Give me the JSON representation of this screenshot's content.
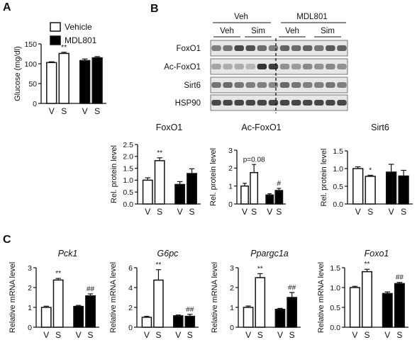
{
  "colors": {
    "vehicle": "#ffffff",
    "mdl801": "#000000",
    "axis": "#111111",
    "blot_bg": "#e6e6e6",
    "band": "#2a2a2a"
  },
  "panels": {
    "A": "A",
    "B": "B",
    "C": "C"
  },
  "legend": {
    "vehicle": "Vehicle",
    "mdl801": "MDL801"
  },
  "blot": {
    "group_labels": [
      "Veh",
      "MDL801"
    ],
    "sub_labels": [
      "Veh",
      "Sim",
      "Veh",
      "Sim"
    ],
    "rows": [
      {
        "label": "FoxO1",
        "intensities": [
          0.55,
          0.6,
          0.85,
          0.8,
          0.65,
          0.55,
          0.7,
          0.65,
          0.7,
          0.6,
          0.75,
          0.7
        ]
      },
      {
        "label": "Ac-FoxO1",
        "intensities": [
          0.35,
          0.3,
          0.3,
          0.25,
          0.95,
          0.9,
          0.45,
          0.4,
          0.5,
          0.45,
          0.5,
          0.45
        ]
      },
      {
        "label": "Sirt6",
        "intensities": [
          0.6,
          0.65,
          0.6,
          0.55,
          0.55,
          0.5,
          0.65,
          0.6,
          0.55,
          0.55,
          0.6,
          0.55
        ]
      },
      {
        "label": "HSP90",
        "intensities": [
          0.85,
          0.85,
          0.85,
          0.85,
          0.85,
          0.85,
          0.85,
          0.85,
          0.85,
          0.85,
          0.85,
          0.85
        ]
      }
    ]
  },
  "chart_data": [
    {
      "type": "bar",
      "title": "",
      "title_italic": false,
      "ylabel": "Glucose (mg/dl)",
      "ylim": [
        0,
        150
      ],
      "yticks": [
        "0",
        "50",
        "100",
        "150"
      ],
      "categories": [
        "V",
        "S",
        "V",
        "S"
      ],
      "groups": [
        "vehicle",
        "vehicle",
        "mdl801",
        "mdl801"
      ],
      "values": [
        103,
        126,
        108,
        115
      ],
      "errors": [
        2,
        3,
        4,
        3
      ],
      "annotations": [
        {
          "bar": 1,
          "text": "**"
        }
      ]
    },
    {
      "type": "bar",
      "title": "FoxO1",
      "title_italic": false,
      "ylabel": "Rel. protein level",
      "ylim": [
        0,
        2.5
      ],
      "yticks": [
        "0.0",
        "0.5",
        "1.0",
        "1.5",
        "2.0",
        "2.5"
      ],
      "categories": [
        "V",
        "S",
        "V",
        "S"
      ],
      "groups": [
        "vehicle",
        "vehicle",
        "mdl801",
        "mdl801"
      ],
      "values": [
        1.0,
        1.82,
        0.82,
        1.28
      ],
      "errors": [
        0.1,
        0.12,
        0.12,
        0.2
      ],
      "annotations": [
        {
          "bar": 1,
          "text": "**"
        }
      ]
    },
    {
      "type": "bar",
      "title": "Ac-FoxO1",
      "title_italic": false,
      "ylabel": "Rel. protein level",
      "ylim": [
        0,
        3
      ],
      "yticks": [
        "0",
        "1",
        "2",
        "3"
      ],
      "categories": [
        "V",
        "S",
        "V",
        "S"
      ],
      "groups": [
        "vehicle",
        "vehicle",
        "mdl801",
        "mdl801"
      ],
      "values": [
        1.0,
        1.75,
        0.5,
        0.75
      ],
      "errors": [
        0.15,
        0.45,
        0.07,
        0.12
      ],
      "annotations": [
        {
          "bar": 1,
          "text": "p=0.08"
        },
        {
          "bar": 3,
          "text": "#"
        }
      ]
    },
    {
      "type": "bar",
      "title": "Sirt6",
      "title_italic": false,
      "ylabel": "Rel. protein level",
      "ylim": [
        0,
        1.5
      ],
      "yticks": [
        "0.0",
        "0.5",
        "1.0",
        "1.5"
      ],
      "categories": [
        "V",
        "S",
        "V",
        "S"
      ],
      "groups": [
        "vehicle",
        "vehicle",
        "mdl801",
        "mdl801"
      ],
      "values": [
        1.0,
        0.78,
        0.9,
        0.79
      ],
      "errors": [
        0.05,
        0.03,
        0.22,
        0.16
      ],
      "annotations": [
        {
          "bar": 1,
          "text": "*"
        }
      ]
    },
    {
      "type": "bar",
      "title": "Pck1",
      "title_italic": true,
      "ylabel": "Relative mRNA level",
      "ylim": [
        0,
        3
      ],
      "yticks": [
        "0",
        "1",
        "2",
        "3"
      ],
      "categories": [
        "V",
        "S",
        "V",
        "S"
      ],
      "groups": [
        "vehicle",
        "vehicle",
        "mdl801",
        "mdl801"
      ],
      "values": [
        1.0,
        2.38,
        1.05,
        1.58
      ],
      "errors": [
        0.06,
        0.08,
        0.05,
        0.1
      ],
      "annotations": [
        {
          "bar": 1,
          "text": "**"
        },
        {
          "bar": 3,
          "text": "##"
        }
      ]
    },
    {
      "type": "bar",
      "title": "G6pc",
      "title_italic": true,
      "ylabel": "Relative mRNA level",
      "ylim": [
        0,
        6
      ],
      "yticks": [
        "0",
        "2",
        "4",
        "6"
      ],
      "categories": [
        "V",
        "S",
        "V",
        "S"
      ],
      "groups": [
        "vehicle",
        "vehicle",
        "mdl801",
        "mdl801"
      ],
      "values": [
        1.0,
        4.75,
        1.15,
        1.1
      ],
      "errors": [
        0.1,
        1.05,
        0.08,
        0.2
      ],
      "annotations": [
        {
          "bar": 1,
          "text": "**"
        },
        {
          "bar": 3,
          "text": "##"
        }
      ]
    },
    {
      "type": "bar",
      "title": "Ppargc1a",
      "title_italic": true,
      "ylabel": "Relative mRNA level",
      "ylim": [
        0,
        3
      ],
      "yticks": [
        "0",
        "1",
        "2",
        "3"
      ],
      "categories": [
        "V",
        "S",
        "V",
        "S"
      ],
      "groups": [
        "vehicle",
        "vehicle",
        "mdl801",
        "mdl801"
      ],
      "values": [
        1.0,
        2.5,
        0.9,
        1.5
      ],
      "errors": [
        0.07,
        0.2,
        0.05,
        0.25
      ],
      "annotations": [
        {
          "bar": 1,
          "text": "**"
        },
        {
          "bar": 3,
          "text": "##"
        }
      ]
    },
    {
      "type": "bar",
      "title": "Foxo1",
      "title_italic": true,
      "ylabel": "Relative mRNA level",
      "ylim": [
        0,
        1.5
      ],
      "yticks": [
        "0.0",
        "0.5",
        "1.0",
        "1.5"
      ],
      "categories": [
        "V",
        "S",
        "V",
        "S"
      ],
      "groups": [
        "vehicle",
        "vehicle",
        "mdl801",
        "mdl801"
      ],
      "values": [
        1.0,
        1.4,
        0.85,
        1.1
      ],
      "errors": [
        0.03,
        0.06,
        0.04,
        0.03
      ],
      "annotations": [
        {
          "bar": 1,
          "text": "**"
        },
        {
          "bar": 3,
          "text": "##"
        }
      ]
    }
  ]
}
